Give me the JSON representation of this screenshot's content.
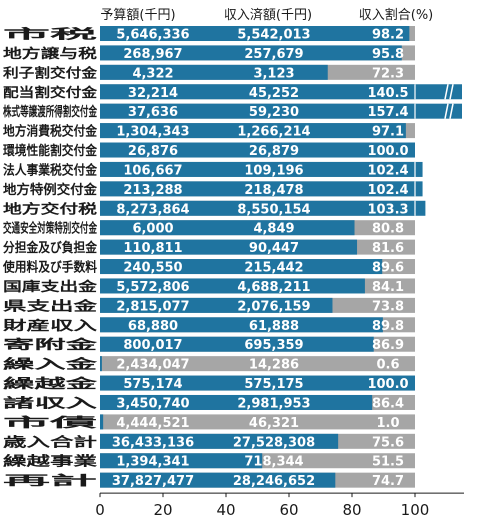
{
  "chart_data": {
    "type": "bar",
    "title": "",
    "columns": [
      "予算額(千円)",
      "収入済額(千円)",
      "収入割合(%)"
    ],
    "x_ticks": [
      "0",
      "20",
      "40",
      "60",
      "80",
      "100"
    ],
    "xlim": [
      0,
      120
    ],
    "colors": {
      "filled": "#1f74a0",
      "remainder": "#a6a6a6",
      "text_on_bar": "#ffffff"
    },
    "rows": [
      {
        "category": "市税",
        "budget": "5,646,336",
        "revenue": "5,542,013",
        "ratio": "98.2",
        "value": 98.2
      },
      {
        "category": "地方譲与税",
        "budget": "268,967",
        "revenue": "257,679",
        "ratio": "95.8",
        "value": 95.8
      },
      {
        "category": "利子割交付金",
        "budget": "4,322",
        "revenue": "3,123",
        "ratio": "72.3",
        "value": 72.3
      },
      {
        "category": "配当割交付金",
        "budget": "32,214",
        "revenue": "45,252",
        "ratio": "140.5",
        "value": 140.5
      },
      {
        "category": "株式等譲渡所得割交付金",
        "budget": "37,636",
        "revenue": "59,230",
        "ratio": "157.4",
        "value": 157.4
      },
      {
        "category": "地方消費税交付金",
        "budget": "1,304,343",
        "revenue": "1,266,214",
        "ratio": "97.1",
        "value": 97.1
      },
      {
        "category": "環境性能割交付金",
        "budget": "26,876",
        "revenue": "26,879",
        "ratio": "100.0",
        "value": 100.0
      },
      {
        "category": "法人事業税交付金",
        "budget": "106,667",
        "revenue": "109,196",
        "ratio": "102.4",
        "value": 102.4
      },
      {
        "category": "地方特例交付金",
        "budget": "213,288",
        "revenue": "218,478",
        "ratio": "102.4",
        "value": 102.4
      },
      {
        "category": "地方交付税",
        "budget": "8,273,864",
        "revenue": "8,550,154",
        "ratio": "103.3",
        "value": 103.3
      },
      {
        "category": "交通安全対策特別交付金",
        "budget": "6,000",
        "revenue": "4,849",
        "ratio": "80.8",
        "value": 80.8
      },
      {
        "category": "分担金及び負担金",
        "budget": "110,811",
        "revenue": "90,447",
        "ratio": "81.6",
        "value": 81.6
      },
      {
        "category": "使用料及び手数料",
        "budget": "240,550",
        "revenue": "215,442",
        "ratio": "89.6",
        "value": 89.6
      },
      {
        "category": "国庫支出金",
        "budget": "5,572,806",
        "revenue": "4,688,211",
        "ratio": "84.1",
        "value": 84.1
      },
      {
        "category": "県支出金",
        "budget": "2,815,077",
        "revenue": "2,076,159",
        "ratio": "73.8",
        "value": 73.8
      },
      {
        "category": "財産収入",
        "budget": "68,880",
        "revenue": "61,888",
        "ratio": "89.8",
        "value": 89.8
      },
      {
        "category": "寄附金",
        "budget": "800,017",
        "revenue": "695,359",
        "ratio": "86.9",
        "value": 86.9
      },
      {
        "category": "繰入金",
        "budget": "2,434,047",
        "revenue": "14,286",
        "ratio": "0.6",
        "value": 0.6
      },
      {
        "category": "繰越金",
        "budget": "575,174",
        "revenue": "575,175",
        "ratio": "100.0",
        "value": 100.0
      },
      {
        "category": "諸収入",
        "budget": "3,450,740",
        "revenue": "2,981,953",
        "ratio": "86.4",
        "value": 86.4
      },
      {
        "category": "市債",
        "budget": "4,444,521",
        "revenue": "46,321",
        "ratio": "1.0",
        "value": 1.0
      },
      {
        "category": "歳入合計",
        "budget": "36,433,136",
        "revenue": "27,528,308",
        "ratio": "75.6",
        "value": 75.6
      },
      {
        "category": "繰越事業",
        "budget": "1,394,341",
        "revenue": "718,344",
        "ratio": "51.5",
        "value": 51.5
      },
      {
        "category": "再計",
        "budget": "37,827,477",
        "revenue": "28,246,652",
        "ratio": "74.7",
        "value": 74.7
      }
    ]
  }
}
